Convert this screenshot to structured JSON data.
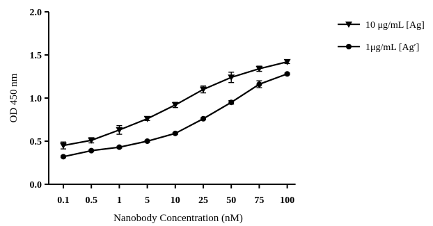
{
  "chart_data": {
    "type": "line",
    "categories": [
      "0.1",
      "0.5",
      "1",
      "5",
      "10",
      "25",
      "50",
      "75",
      "100"
    ],
    "xlabel": "Nanobody Concentration (nM)",
    "ylabel": "OD 450 nm",
    "ylim": [
      0,
      2.0
    ],
    "yticks": [
      "0.0",
      "0.5",
      "1.0",
      "1.5",
      "2.0"
    ],
    "legend_position": "top-right",
    "grid": false,
    "series": [
      {
        "name": "10 μg/mL [Ag]",
        "marker": "triangle-down",
        "values": [
          0.45,
          0.51,
          0.63,
          0.76,
          0.92,
          1.1,
          1.24,
          1.34,
          1.42
        ],
        "errors": [
          0.04,
          0.03,
          0.05,
          0.02,
          0.03,
          0.04,
          0.06,
          0.03,
          0.02
        ]
      },
      {
        "name": "1μg/mL [Ag′]",
        "marker": "circle",
        "values": [
          0.32,
          0.39,
          0.43,
          0.5,
          0.59,
          0.76,
          0.95,
          1.16,
          1.28
        ],
        "errors": [
          0.01,
          0.01,
          0.01,
          0.01,
          0.01,
          0.01,
          0.02,
          0.04,
          0.01
        ]
      }
    ],
    "color": "#000000"
  }
}
